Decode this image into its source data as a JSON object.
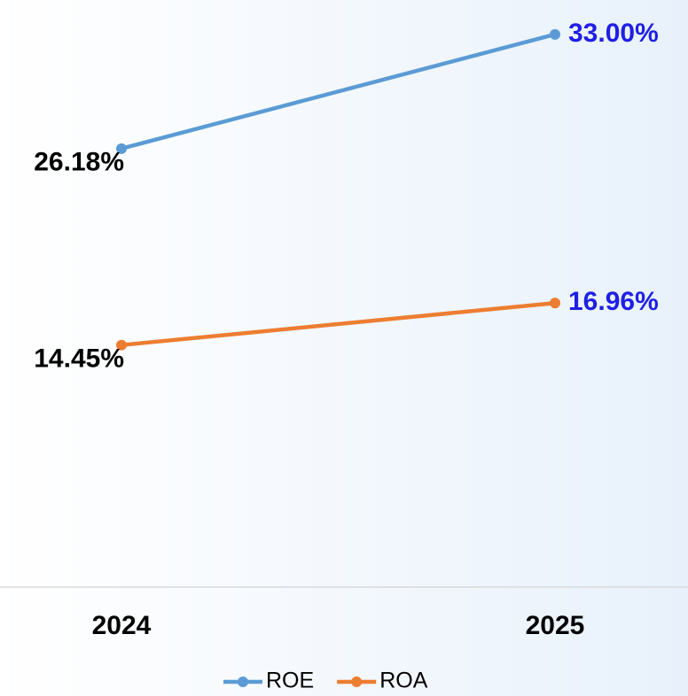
{
  "chart_data": {
    "type": "line",
    "categories": [
      "2024",
      "2025"
    ],
    "series": [
      {
        "name": "ROE",
        "color": "#5b9bd5",
        "values": [
          26.18,
          33.0
        ],
        "value_labels": [
          "26.18%",
          "33.00%"
        ]
      },
      {
        "name": "ROA",
        "color": "#ed7d31",
        "values": [
          14.45,
          16.96
        ],
        "value_labels": [
          "14.45%",
          "16.96%"
        ]
      }
    ],
    "value_label_colors": [
      "#000000",
      "#1f1fe6"
    ],
    "ylim": [
      0,
      35
    ],
    "legend": "bottom"
  }
}
